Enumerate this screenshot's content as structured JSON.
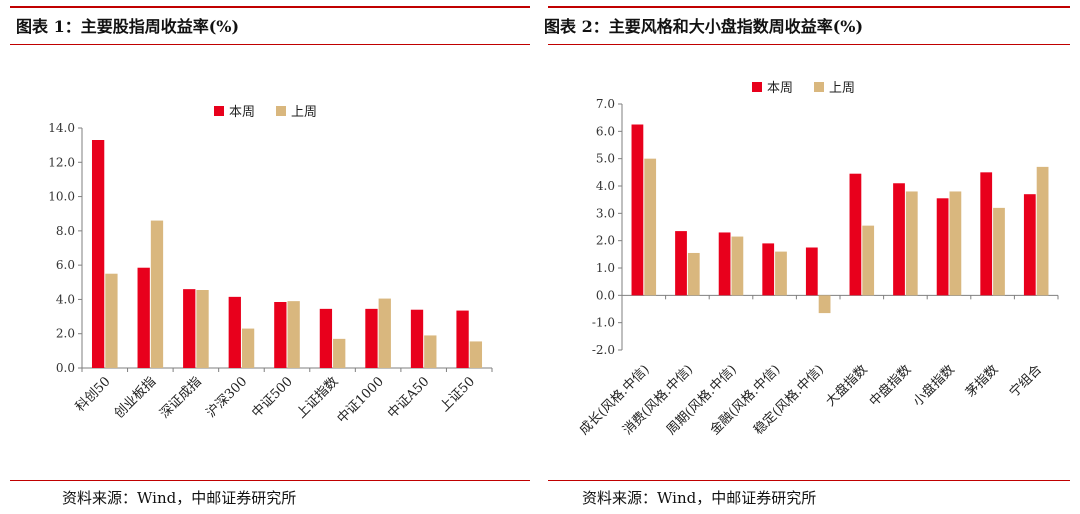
{
  "left": {
    "title": "图表 1：主要股指周收益率(%)",
    "source": "资料来源：Wind，中邮证券研究所"
  },
  "right": {
    "title": "图表 2：主要风格和大小盘指数周收益率(%)",
    "source": "资料来源：Wind，中邮证券研究所"
  },
  "colors": {
    "this_week": "#e8001c",
    "last_week": "#d9b77e",
    "rule": "#c00000"
  },
  "chart_data": [
    {
      "type": "bar",
      "categories": [
        "科创50",
        "创业板指",
        "深证成指",
        "沪深300",
        "中证500",
        "上证指数",
        "中证1000",
        "中证A50",
        "上证50"
      ],
      "series": [
        {
          "name": "本周",
          "values": [
            13.3,
            5.85,
            4.6,
            4.15,
            3.85,
            3.45,
            3.45,
            3.4,
            3.35
          ]
        },
        {
          "name": "上周",
          "values": [
            5.5,
            8.6,
            4.55,
            2.3,
            3.9,
            1.7,
            4.05,
            1.9,
            1.55
          ]
        }
      ],
      "ylim": [
        0,
        14
      ],
      "yticks": [
        "0.0",
        "2.0",
        "4.0",
        "6.0",
        "8.0",
        "10.0",
        "12.0",
        "14.0"
      ],
      "legend": "top-center",
      "grid": false
    },
    {
      "type": "bar",
      "categories": [
        "成长(风格.中信)",
        "消费(风格.中信)",
        "周期(风格.中信)",
        "金融(风格.中信)",
        "稳定(风格.中信)",
        "大盘指数",
        "中盘指数",
        "小盘指数",
        "茅指数",
        "宁组合"
      ],
      "series": [
        {
          "name": "本周",
          "values": [
            6.25,
            2.35,
            2.3,
            1.9,
            1.75,
            4.45,
            4.1,
            3.55,
            4.5,
            3.7
          ]
        },
        {
          "name": "上周",
          "values": [
            5.0,
            1.55,
            2.15,
            1.6,
            -0.65,
            2.55,
            3.8,
            3.8,
            3.2,
            4.7
          ]
        }
      ],
      "ylim": [
        -2,
        7
      ],
      "yticks": [
        "-2.0",
        "-1.0",
        "0.0",
        "1.0",
        "2.0",
        "3.0",
        "4.0",
        "5.0",
        "6.0",
        "7.0"
      ],
      "legend": "top-center",
      "grid": false
    }
  ]
}
